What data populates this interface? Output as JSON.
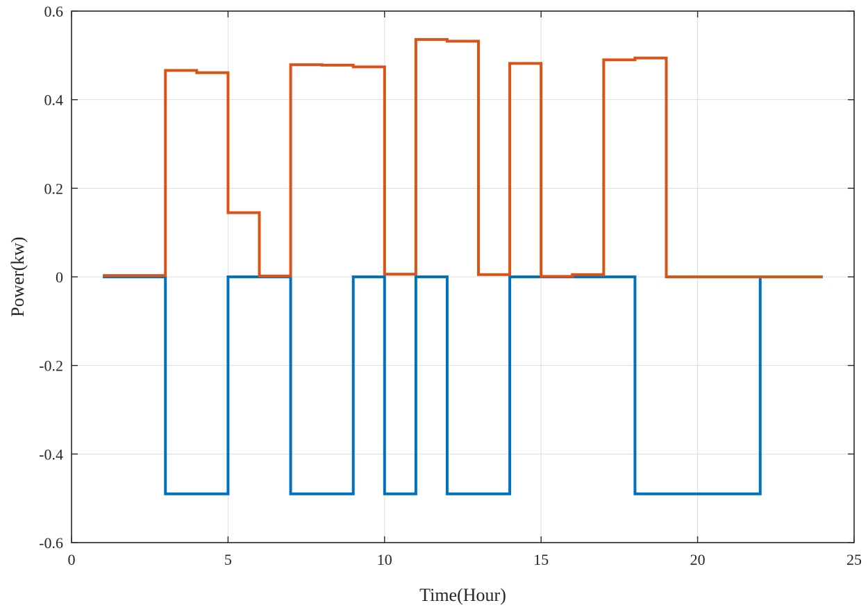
{
  "chart_data": {
    "type": "line",
    "step": true,
    "title": "",
    "xlabel": "Time(Hour)",
    "ylabel": "Power(kw)",
    "xlim": [
      0,
      25
    ],
    "ylim": [
      -0.6,
      0.6
    ],
    "xticks": [
      0,
      5,
      10,
      15,
      20,
      25
    ],
    "xtick_labels": [
      "0",
      "5",
      "10",
      "15",
      "20",
      "25"
    ],
    "yticks": [
      -0.6,
      -0.4,
      -0.2,
      0,
      0.2,
      0.4,
      0.6
    ],
    "ytick_labels": [
      "-0.6",
      "-0.4",
      "-0.2",
      "0",
      "0.2",
      "0.4",
      "0.6"
    ],
    "grid": true,
    "legend": "none",
    "series": [
      {
        "color": "#0072BD",
        "x": [
          1,
          3,
          3,
          5,
          5,
          7,
          7,
          9,
          9,
          10,
          10,
          11,
          11,
          12,
          12,
          14,
          14,
          18,
          18,
          22,
          22
        ],
        "y": [
          0,
          0,
          -0.49,
          -0.49,
          0,
          0,
          -0.49,
          -0.49,
          0,
          0,
          -0.49,
          -0.49,
          0,
          0,
          -0.49,
          -0.49,
          0,
          0,
          -0.49,
          -0.49,
          0
        ]
      },
      {
        "color": "#D95319",
        "x": [
          1,
          3,
          3,
          4,
          4,
          5,
          5,
          6,
          6,
          7,
          7,
          8,
          8,
          9,
          9,
          10,
          10,
          11,
          11,
          12,
          12,
          13,
          13,
          14,
          14,
          15,
          15,
          16,
          16,
          17,
          17,
          18,
          18,
          19,
          19,
          24
        ],
        "y": [
          0.003,
          0.003,
          0.466,
          0.466,
          0.461,
          0.461,
          0.145,
          0.145,
          0.002,
          0.002,
          0.479,
          0.479,
          0.478,
          0.478,
          0.474,
          0.474,
          0.006,
          0.006,
          0.536,
          0.536,
          0.532,
          0.532,
          0.005,
          0.005,
          0.482,
          0.482,
          0.001,
          0.001,
          0.005,
          0.005,
          0.49,
          0.49,
          0.494,
          0.494,
          0.0,
          0.0
        ]
      }
    ]
  }
}
